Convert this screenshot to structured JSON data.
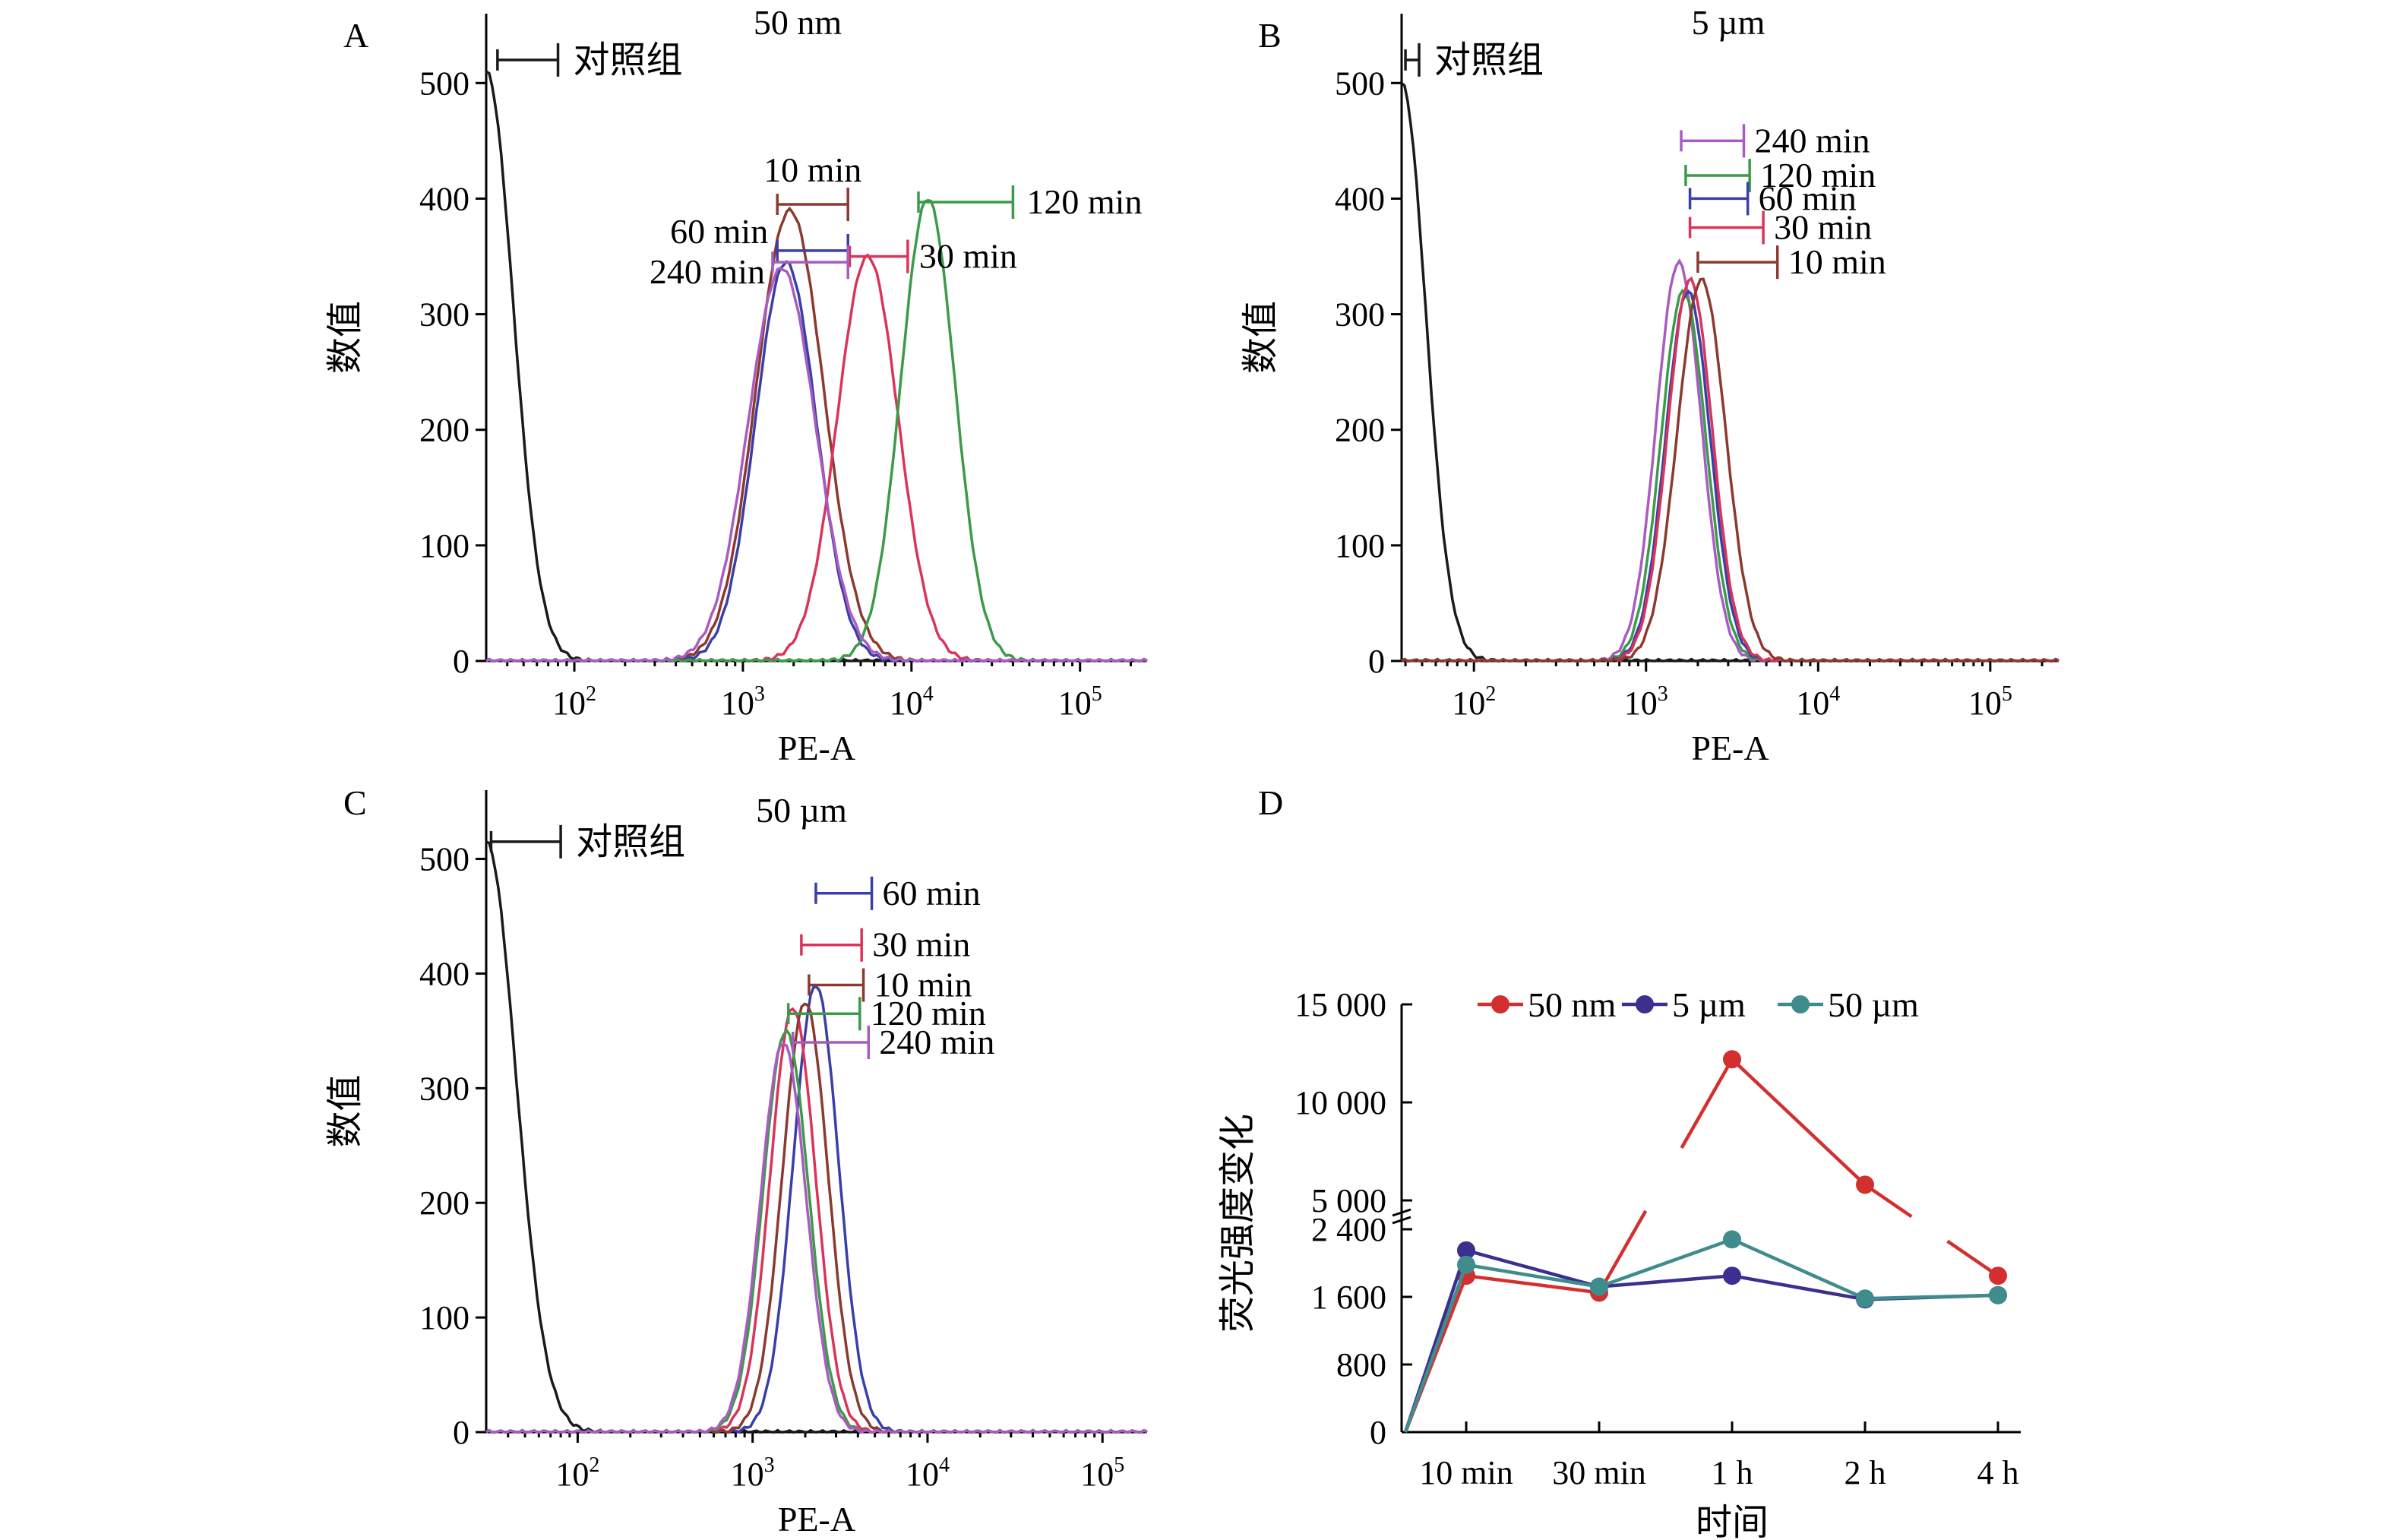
{
  "colors": {
    "control": "#1a1a1a",
    "10 min": "#8b3a2f",
    "30 min": "#d9345a",
    "60 min": "#3a3fa8",
    "120 min": "#3c9a4a",
    "240 min": "#a85cc0",
    "50 nm": "#d32f2f",
    "5 µm": "#3b2f8f",
    "50 µm": "#3f8c8c"
  },
  "chart_data": [
    {
      "panel": "A",
      "title": "50 nm",
      "type": "line",
      "xlabel": "PE-A",
      "ylabel": "数值",
      "xscale": "log",
      "xlim": [
        30,
        250000
      ],
      "ylim": [
        0,
        560
      ],
      "x_ticks": [
        {
          "value": 100,
          "base": "10",
          "exp": "2"
        },
        {
          "value": 1000,
          "base": "10",
          "exp": "3"
        },
        {
          "value": 10000,
          "base": "10",
          "exp": "4"
        },
        {
          "value": 100000,
          "base": "10",
          "exp": "5"
        }
      ],
      "y_ticks": [
        "0",
        "100",
        "200",
        "300",
        "400",
        "500"
      ],
      "control": {
        "name": "对照组",
        "gate": [
          35,
          80
        ],
        "gate_y": 520,
        "peak_x": 30,
        "peak_y": 510,
        "width": 0.16
      },
      "series": [
        {
          "name": "10 min",
          "peak_x": 1900,
          "peak_y": 390,
          "width": 0.2,
          "gate": [
            1600,
            4200
          ],
          "gate_y": 395
        },
        {
          "name": "30 min",
          "peak_x": 5500,
          "peak_y": 350,
          "width": 0.18,
          "gate": [
            4300,
            9500
          ],
          "gate_y": 350
        },
        {
          "name": "60 min",
          "peak_x": 1800,
          "peak_y": 345,
          "width": 0.18,
          "gate": [
            1600,
            4200
          ],
          "gate_y": 355
        },
        {
          "name": "120 min",
          "peak_x": 12500,
          "peak_y": 400,
          "width": 0.16,
          "gate": [
            11000,
            40000
          ],
          "gate_y": 397
        },
        {
          "name": "240 min",
          "peak_x": 1700,
          "peak_y": 340,
          "width": 0.2,
          "gate": [
            1500,
            4200
          ],
          "gate_y": 345
        }
      ]
    },
    {
      "panel": "B",
      "title": "5 µm",
      "type": "line",
      "xlabel": "PE-A",
      "ylabel": "数值",
      "xscale": "log",
      "xlim": [
        38,
        250000
      ],
      "ylim": [
        0,
        560
      ],
      "x_ticks": [
        {
          "value": 100,
          "base": "10",
          "exp": "2"
        },
        {
          "value": 1000,
          "base": "10",
          "exp": "3"
        },
        {
          "value": 10000,
          "base": "10",
          "exp": "4"
        },
        {
          "value": 100000,
          "base": "10",
          "exp": "5"
        }
      ],
      "y_ticks": [
        "0",
        "100",
        "200",
        "300",
        "400",
        "500"
      ],
      "control": {
        "name": "对照组",
        "gate": [
          40,
          48
        ],
        "gate_y": 520,
        "peak_x": 38,
        "peak_y": 500,
        "width": 0.14
      },
      "series": [
        {
          "name": "240 min",
          "peak_x": 1550,
          "peak_y": 345,
          "width": 0.13,
          "gate": [
            1600,
            3700
          ],
          "gate_y": 450
        },
        {
          "name": "120 min",
          "peak_x": 1650,
          "peak_y": 320,
          "width": 0.13,
          "gate": [
            1700,
            4000
          ],
          "gate_y": 420
        },
        {
          "name": "60 min",
          "peak_x": 1750,
          "peak_y": 320,
          "width": 0.13,
          "gate": [
            1800,
            3900
          ],
          "gate_y": 400
        },
        {
          "name": "30 min",
          "peak_x": 1800,
          "peak_y": 330,
          "width": 0.13,
          "gate": [
            1800,
            4800
          ],
          "gate_y": 375
        },
        {
          "name": "10 min",
          "peak_x": 2100,
          "peak_y": 330,
          "width": 0.14,
          "gate": [
            2000,
            5800
          ],
          "gate_y": 345
        }
      ]
    },
    {
      "panel": "C",
      "title": "50 µm",
      "type": "line",
      "xlabel": "PE-A",
      "ylabel": "数值",
      "xscale": "log",
      "xlim": [
        30,
        180000
      ],
      "ylim": [
        0,
        560
      ],
      "x_ticks": [
        {
          "value": 100,
          "base": "10",
          "exp": "2"
        },
        {
          "value": 1000,
          "base": "10",
          "exp": "3"
        },
        {
          "value": 10000,
          "base": "10",
          "exp": "4"
        },
        {
          "value": 100000,
          "base": "10",
          "exp": "5"
        }
      ],
      "y_ticks": [
        "0",
        "100",
        "200",
        "300",
        "400",
        "500"
      ],
      "control": {
        "name": "对照组",
        "gate": [
          32,
          80
        ],
        "gate_y": 515,
        "peak_x": 30,
        "peak_y": 515,
        "width": 0.17
      },
      "series": [
        {
          "name": "60 min",
          "peak_x": 2300,
          "peak_y": 390,
          "width": 0.13,
          "gate": [
            2300,
            4800
          ],
          "gate_y": 470
        },
        {
          "name": "30 min",
          "peak_x": 1700,
          "peak_y": 370,
          "width": 0.13,
          "gate": [
            1900,
            4200
          ],
          "gate_y": 425
        },
        {
          "name": "10 min",
          "peak_x": 2000,
          "peak_y": 375,
          "width": 0.13,
          "gate": [
            2100,
            4300
          ],
          "gate_y": 390
        },
        {
          "name": "120 min",
          "peak_x": 1550,
          "peak_y": 350,
          "width": 0.13,
          "gate": [
            1600,
            4100
          ],
          "gate_y": 365
        },
        {
          "name": "240 min",
          "peak_x": 1500,
          "peak_y": 340,
          "width": 0.13,
          "gate": [
            1700,
            4600
          ],
          "gate_y": 340
        }
      ]
    },
    {
      "panel": "D",
      "title": "",
      "type": "line",
      "xlabel": "时间",
      "ylabel": "荧光强度变化",
      "categories": [
        "10 min",
        "30 min",
        "1 h",
        "2 h",
        "4 h"
      ],
      "y_ticks": [
        "0",
        "800",
        "1 600",
        "2 400",
        "5 000",
        "10 000",
        "15 000"
      ],
      "broken_axis": {
        "lower_range": [
          0,
          2400
        ],
        "upper_range": [
          5000,
          15000
        ]
      },
      "legend_position": "top",
      "series": [
        {
          "name": "50 nm",
          "origin": 0,
          "values": [
            1850,
            1650,
            12200,
            5800,
            1850
          ]
        },
        {
          "name": "5 µm",
          "origin": 0,
          "values": [
            2150,
            1720,
            1850,
            1570,
            1620
          ]
        },
        {
          "name": "50 µm",
          "origin": 0,
          "values": [
            1980,
            1720,
            2280,
            1580,
            1620
          ]
        }
      ]
    }
  ]
}
